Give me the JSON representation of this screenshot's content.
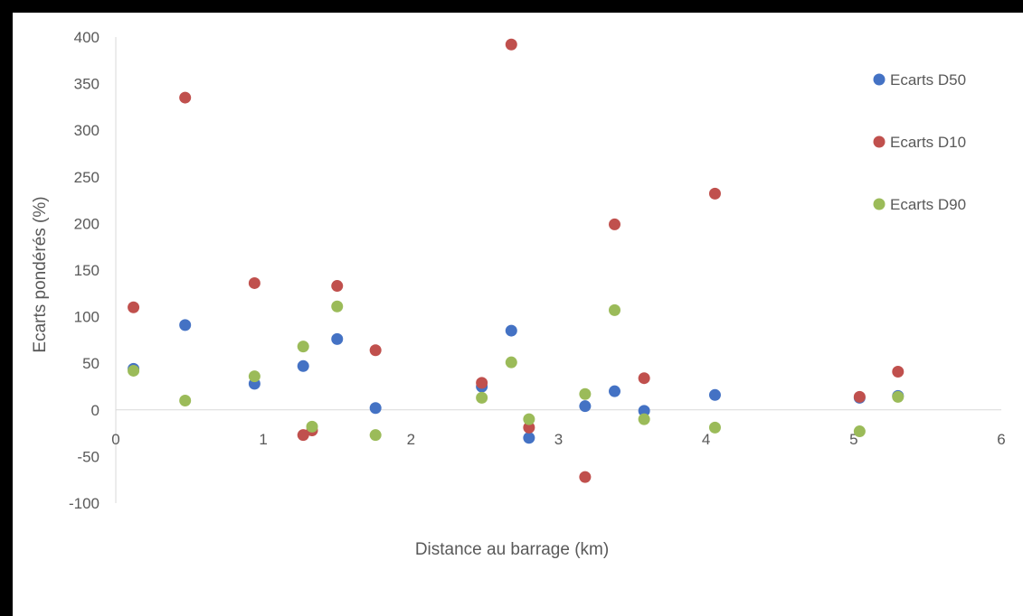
{
  "chart_data": {
    "type": "scatter",
    "title": "",
    "xlabel": "Distance au barrage (km)",
    "ylabel": "Ecarts pondérés (%)",
    "xlim": [
      0,
      6
    ],
    "ylim": [
      -100,
      400
    ],
    "x_ticks": [
      "0",
      "1",
      "2",
      "3",
      "4",
      "5",
      "6"
    ],
    "y_ticks": [
      "400",
      "350",
      "300",
      "250",
      "200",
      "150",
      "100",
      "50",
      "0",
      "-50",
      "-100"
    ],
    "grid": false,
    "legend_position": "right",
    "series": [
      {
        "name": "Ecarts D50",
        "color": "#4472C4",
        "points": [
          [
            0.12,
            44
          ],
          [
            0.47,
            91
          ],
          [
            0.94,
            28
          ],
          [
            1.27,
            47
          ],
          [
            1.5,
            76
          ],
          [
            1.76,
            2
          ],
          [
            2.48,
            25
          ],
          [
            2.68,
            85
          ],
          [
            2.8,
            -30
          ],
          [
            3.18,
            4
          ],
          [
            3.38,
            20
          ],
          [
            3.58,
            -1
          ],
          [
            4.06,
            16
          ],
          [
            5.04,
            13
          ],
          [
            5.3,
            15
          ]
        ]
      },
      {
        "name": "Ecarts D10",
        "color": "#C0504D",
        "points": [
          [
            0.12,
            110
          ],
          [
            0.47,
            335
          ],
          [
            0.94,
            136
          ],
          [
            1.27,
            -27
          ],
          [
            1.33,
            -22
          ],
          [
            1.5,
            133
          ],
          [
            1.76,
            64
          ],
          [
            2.48,
            29
          ],
          [
            2.68,
            392
          ],
          [
            2.8,
            -19
          ],
          [
            3.18,
            -72
          ],
          [
            3.38,
            199
          ],
          [
            3.58,
            34
          ],
          [
            4.06,
            232
          ],
          [
            5.04,
            14
          ],
          [
            5.3,
            41
          ]
        ]
      },
      {
        "name": "Ecarts D90",
        "color": "#9BBB59",
        "points": [
          [
            0.12,
            42
          ],
          [
            0.47,
            10
          ],
          [
            0.94,
            36
          ],
          [
            1.27,
            68
          ],
          [
            1.33,
            -18
          ],
          [
            1.5,
            111
          ],
          [
            1.76,
            -27
          ],
          [
            2.48,
            13
          ],
          [
            2.68,
            51
          ],
          [
            2.8,
            -10
          ],
          [
            3.18,
            17
          ],
          [
            3.38,
            107
          ],
          [
            3.58,
            -10
          ],
          [
            4.06,
            -19
          ],
          [
            5.04,
            -23
          ],
          [
            5.3,
            14
          ]
        ]
      }
    ]
  }
}
